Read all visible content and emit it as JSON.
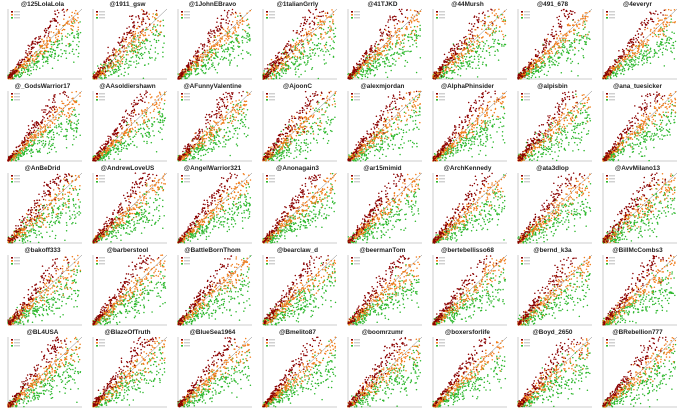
{
  "colors": {
    "dark": "#8b0000",
    "mid": "#f07c1a",
    "green": "#2db82d",
    "axis": "#999999",
    "diagonal": "#7f7f7f",
    "background": "#ffffff"
  },
  "chart_data": {
    "type": "scatter",
    "layout": {
      "rows": 5,
      "cols": 8
    },
    "grid": false,
    "legend": "top-left",
    "panels": [
      {
        "title": "@125LolaLola"
      },
      {
        "title": "@1911_gsw"
      },
      {
        "title": "@1JohnEBravo"
      },
      {
        "title": "@1talianGrrly"
      },
      {
        "title": "@41TJKD"
      },
      {
        "title": "@44Mursh"
      },
      {
        "title": "@491_678"
      },
      {
        "title": "@4everyr"
      },
      {
        "title": "@_GodsWarrior17"
      },
      {
        "title": "@AAsoldiershawn"
      },
      {
        "title": "@AFunnyValentine"
      },
      {
        "title": "@AjoonC"
      },
      {
        "title": "@alexmjordan"
      },
      {
        "title": "@AlphaPhinsider"
      },
      {
        "title": "@alpisbin"
      },
      {
        "title": "@ana_tuesicker"
      },
      {
        "title": "@AnBeDrid"
      },
      {
        "title": "@AndrewLoveUS"
      },
      {
        "title": "@AngelWarrior321"
      },
      {
        "title": "@Anonagain3"
      },
      {
        "title": "@ar15mimid"
      },
      {
        "title": "@ArchKennedy"
      },
      {
        "title": "@ata3dlop"
      },
      {
        "title": "@AvvMilano13"
      },
      {
        "title": "@bakoff333"
      },
      {
        "title": "@barberstool"
      },
      {
        "title": "@BattleBornThom"
      },
      {
        "title": "@bearclaw_d"
      },
      {
        "title": "@beermanTom"
      },
      {
        "title": "@bertebellisso68"
      },
      {
        "title": "@bernd_k3a"
      },
      {
        "title": "@BillMcCombs3"
      },
      {
        "title": "@BL4USA"
      },
      {
        "title": "@BlazeOfTruth"
      },
      {
        "title": "@BlueSea1964"
      },
      {
        "title": "@Bmelito87"
      },
      {
        "title": "@boomrzumr"
      },
      {
        "title": "@boxersforlife"
      },
      {
        "title": "@Boyd_2650"
      },
      {
        "title": "@BRebellion777"
      }
    ]
  }
}
